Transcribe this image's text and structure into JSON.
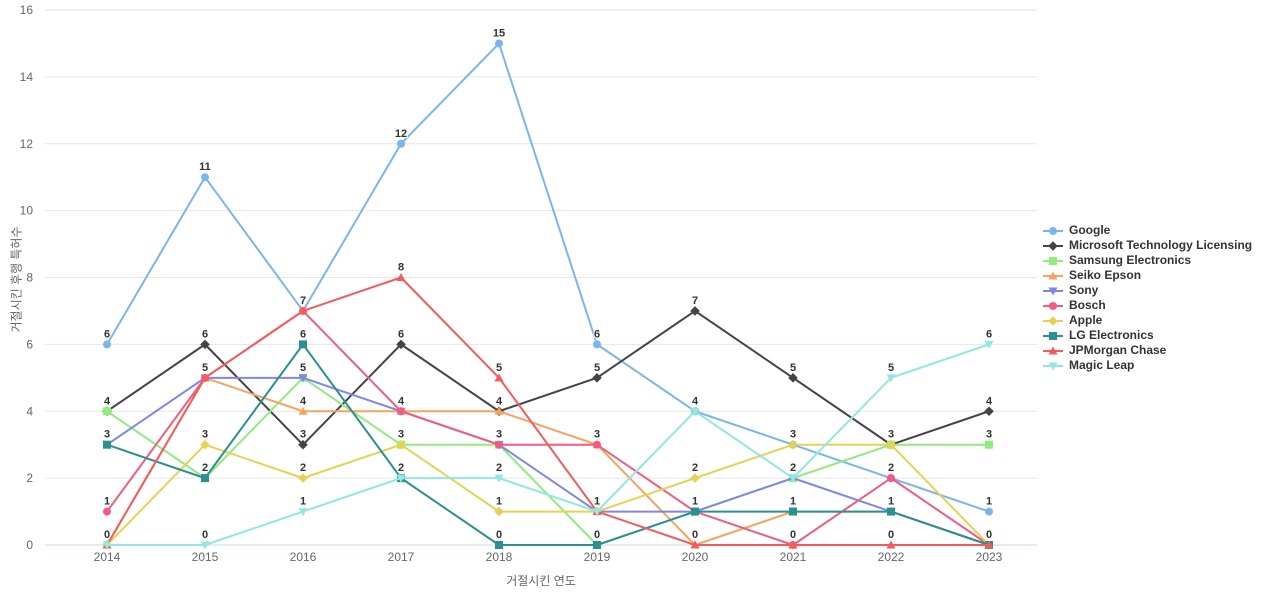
{
  "chart_data": {
    "type": "line",
    "title": "",
    "xlabel": "거절시킨 연도",
    "ylabel": "거절시킨 후행 특허수",
    "x": [
      "2014",
      "2015",
      "2016",
      "2017",
      "2018",
      "2019",
      "2020",
      "2021",
      "2022",
      "2023"
    ],
    "y_ticks": [
      "0",
      "2",
      "4",
      "6",
      "8",
      "10",
      "12",
      "14",
      "16"
    ],
    "ylim": [
      0,
      16
    ],
    "grid": true,
    "legend_position": "right",
    "series": [
      {
        "name": "Google",
        "color": "#7cb5ec",
        "marker": "circle",
        "values": [
          6,
          11,
          7,
          12,
          15,
          6,
          4,
          3,
          2,
          1
        ]
      },
      {
        "name": "Microsoft Technology Licensing",
        "color": "#434348",
        "marker": "diamond",
        "values": [
          4,
          6,
          3,
          6,
          4,
          5,
          7,
          5,
          3,
          4
        ]
      },
      {
        "name": "Samsung Electronics",
        "color": "#90ed7d",
        "marker": "square",
        "values": [
          4,
          2,
          5,
          3,
          3,
          0,
          1,
          2,
          3,
          3
        ]
      },
      {
        "name": "Seiko Epson",
        "color": "#f7a35c",
        "marker": "triangle",
        "values": [
          0,
          5,
          4,
          4,
          4,
          3,
          0,
          1,
          1,
          0
        ]
      },
      {
        "name": "Sony",
        "color": "#8085e9",
        "marker": "triangle-down",
        "values": [
          3,
          5,
          5,
          4,
          3,
          1,
          1,
          2,
          1,
          0
        ]
      },
      {
        "name": "Bosch",
        "color": "#f15c80",
        "marker": "circle",
        "values": [
          1,
          5,
          7,
          4,
          3,
          3,
          1,
          0,
          2,
          0
        ]
      },
      {
        "name": "Apple",
        "color": "#e4d354",
        "marker": "diamond",
        "values": [
          0,
          3,
          2,
          3,
          1,
          1,
          2,
          3,
          3,
          0
        ]
      },
      {
        "name": "LG Electronics",
        "color": "#2b908f",
        "marker": "square",
        "values": [
          3,
          2,
          6,
          2,
          0,
          0,
          1,
          1,
          1,
          0
        ]
      },
      {
        "name": "JPMorgan Chase",
        "color": "#f45b5b",
        "marker": "triangle",
        "values": [
          0,
          5,
          7,
          8,
          5,
          1,
          0,
          0,
          0,
          0
        ]
      },
      {
        "name": "Magic Leap",
        "color": "#91e8e1",
        "marker": "triangle-down",
        "values": [
          0,
          0,
          1,
          2,
          2,
          1,
          4,
          2,
          5,
          6
        ]
      }
    ],
    "style": {
      "gridline_color": "#e6e6e6",
      "baseline_color": "#ccd6eb",
      "tick_label_color": "#666666",
      "data_label_color": "#333333",
      "legend_text_color": "#333333",
      "background": "#ffffff"
    }
  }
}
